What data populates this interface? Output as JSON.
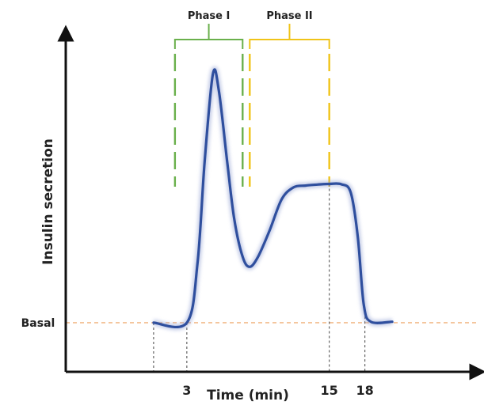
{
  "chart_data": {
    "type": "line",
    "xlabel": "Time (min)",
    "ylabel": "Insulin secretion",
    "x_ticks": [
      3,
      15,
      18
    ],
    "basal_label": "Basal",
    "phases": [
      {
        "name": "Phase I",
        "x_start": 2.0,
        "x_end": 7.7,
        "color": "#6ab04c"
      },
      {
        "name": "Phase II",
        "x_start": 8.3,
        "x_end": 15.0,
        "color": "#f0c419"
      }
    ],
    "xlim": [
      -7.2,
      27.5
    ],
    "ylim": [
      0,
      100
    ],
    "basal_value": 14.5,
    "series": [
      {
        "color": "#2f4f9e",
        "x": [
          0.2,
          3.0,
          3.9,
          4.5,
          5.2,
          5.7,
          6.4,
          7.0,
          7.7,
          8.3,
          9.0,
          10.0,
          11.0,
          12.0,
          13.0,
          14.0,
          15.0,
          16.0,
          16.8,
          17.4,
          17.9,
          18.5,
          20.3
        ],
        "y": [
          14.5,
          14.5,
          32,
          62,
          88,
          83,
          62,
          45,
          34,
          31,
          34,
          42,
          51,
          54.5,
          55,
          55.3,
          55.5,
          55.4,
          53,
          40,
          20,
          14.8,
          14.8
        ]
      }
    ]
  },
  "colors": {
    "axis": "#111111",
    "basal_line": "#f0b07a",
    "drop_line": "#555555"
  }
}
